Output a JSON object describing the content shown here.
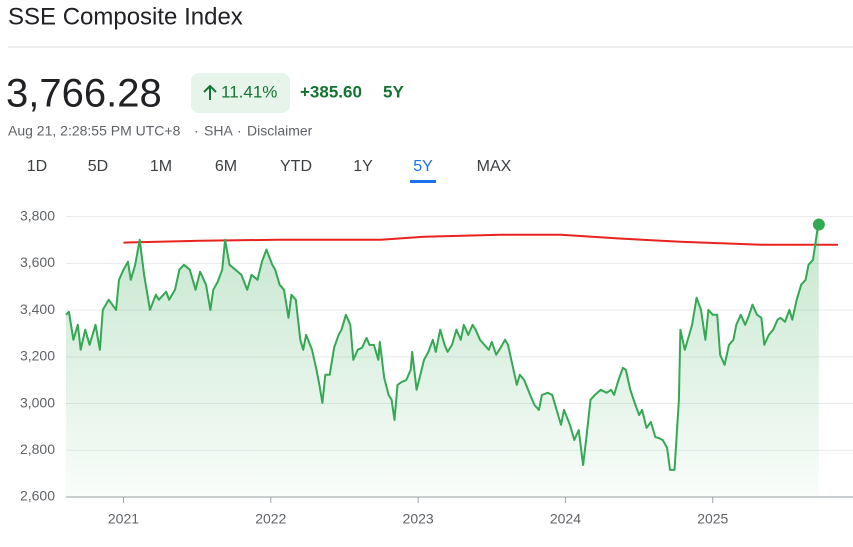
{
  "header": {
    "title": "SSE Composite Index",
    "price": "3,766.28",
    "change_percent": "11.41%",
    "change": "+385.60",
    "change_period": "5Y",
    "timestamp": "Aug 21, 2:28:55 PM UTC+8",
    "exchange": "SHA",
    "disclaimer": "Disclaimer"
  },
  "tabs": {
    "items": [
      "1D",
      "5D",
      "1M",
      "6M",
      "YTD",
      "1Y",
      "5Y",
      "MAX"
    ],
    "selected": 6
  },
  "chart_data": {
    "type": "line",
    "xlim": [
      2020.61,
      2025.85
    ],
    "xticks": [
      2021,
      2022,
      2023,
      2024,
      2025
    ],
    "ylim": [
      2600,
      3850
    ],
    "yticks": [
      {
        "value": 2600,
        "label": "2,600"
      },
      {
        "value": 2800,
        "label": "2,800"
      },
      {
        "value": 3000,
        "label": "3,000"
      },
      {
        "value": 3200,
        "label": "3,200"
      },
      {
        "value": 3400,
        "label": "3,400"
      },
      {
        "value": 3600,
        "label": "3,600"
      },
      {
        "value": 3800,
        "label": "3,800"
      }
    ],
    "grid": true,
    "series": [
      {
        "color": "#34a853",
        "area": true,
        "end_marker": true,
        "x": [
          2020.61,
          2020.63,
          2020.66,
          2020.69,
          2020.71,
          2020.74,
          2020.77,
          2020.81,
          2020.84,
          2020.86,
          2020.9,
          2020.95,
          2020.97,
          2021.0,
          2021.03,
          2021.05,
          2021.08,
          2021.11,
          2021.14,
          2021.18,
          2021.22,
          2021.24,
          2021.29,
          2021.31,
          2021.35,
          2021.38,
          2021.41,
          2021.45,
          2021.49,
          2021.52,
          2021.56,
          2021.59,
          2021.61,
          2021.64,
          2021.67,
          2021.69,
          2021.72,
          2021.76,
          2021.8,
          2021.84,
          2021.87,
          2021.91,
          2021.94,
          2021.97,
          2022.01,
          2022.03,
          2022.06,
          2022.09,
          2022.12,
          2022.14,
          2022.17,
          2022.2,
          2022.22,
          2022.24,
          2022.28,
          2022.31,
          2022.33,
          2022.35,
          2022.37,
          2022.4,
          2022.43,
          2022.46,
          2022.48,
          2022.51,
          2022.54,
          2022.56,
          2022.59,
          2022.62,
          2022.65,
          2022.67,
          2022.7,
          2022.73,
          2022.74,
          2022.77,
          2022.8,
          2022.82,
          2022.84,
          2022.86,
          2022.89,
          2022.92,
          2022.95,
          2022.96,
          2022.99,
          2023.01,
          2023.04,
          2023.07,
          2023.1,
          2023.12,
          2023.15,
          2023.18,
          2023.2,
          2023.23,
          2023.26,
          2023.29,
          2023.31,
          2023.34,
          2023.37,
          2023.39,
          2023.42,
          2023.45,
          2023.48,
          2023.5,
          2023.53,
          2023.56,
          2023.59,
          2023.61,
          2023.64,
          2023.67,
          2023.69,
          2023.72,
          2023.76,
          2023.79,
          2023.82,
          2023.84,
          2023.88,
          2023.91,
          2023.94,
          2023.97,
          2023.99,
          2024.03,
          2024.06,
          2024.09,
          2024.12,
          2024.14,
          2024.17,
          2024.2,
          2024.24,
          2024.28,
          2024.31,
          2024.33,
          2024.36,
          2024.39,
          2024.41,
          2024.44,
          2024.47,
          2024.5,
          2024.52,
          2024.55,
          2024.58,
          2024.61,
          2024.63,
          2024.66,
          2024.69,
          2024.71,
          2024.74,
          2024.77,
          2024.78,
          2024.81,
          2024.84,
          2024.86,
          2024.89,
          2024.92,
          2024.95,
          2024.97,
          2025.0,
          2025.03,
          2025.05,
          2025.08,
          2025.11,
          2025.14,
          2025.16,
          2025.19,
          2025.22,
          2025.24,
          2025.27,
          2025.3,
          2025.33,
          2025.35,
          2025.38,
          2025.41,
          2025.44,
          2025.46,
          2025.49,
          2025.52,
          2025.54,
          2025.57,
          2025.6,
          2025.63,
          2025.65,
          2025.68,
          2025.71,
          2025.72
        ],
        "values": [
          3380,
          3393,
          3273,
          3337,
          3230,
          3316,
          3251,
          3337,
          3230,
          3401,
          3444,
          3401,
          3530,
          3573,
          3607,
          3530,
          3594,
          3701,
          3551,
          3401,
          3466,
          3444,
          3479,
          3444,
          3487,
          3573,
          3594,
          3573,
          3487,
          3564,
          3509,
          3401,
          3487,
          3521,
          3573,
          3701,
          3594,
          3573,
          3551,
          3487,
          3551,
          3530,
          3607,
          3659,
          3594,
          3573,
          3509,
          3487,
          3367,
          3466,
          3444,
          3273,
          3230,
          3294,
          3230,
          3144,
          3080,
          3003,
          3123,
          3123,
          3239,
          3294,
          3316,
          3380,
          3337,
          3187,
          3230,
          3239,
          3281,
          3251,
          3251,
          3187,
          3264,
          3110,
          3037,
          3016,
          2930,
          3080,
          3093,
          3101,
          3144,
          3221,
          3059,
          3110,
          3187,
          3221,
          3273,
          3221,
          3316,
          3251,
          3221,
          3251,
          3316,
          3273,
          3337,
          3294,
          3337,
          3316,
          3273,
          3251,
          3230,
          3264,
          3209,
          3239,
          3273,
          3251,
          3166,
          3080,
          3123,
          3101,
          3037,
          2994,
          2973,
          3037,
          3046,
          3037,
          2973,
          2909,
          2973,
          2909,
          2844,
          2887,
          2737,
          2844,
          3016,
          3037,
          3059,
          3046,
          3059,
          3037,
          3101,
          3153,
          3144,
          3059,
          3003,
          2951,
          2973,
          2896,
          2921,
          2857,
          2853,
          2844,
          2810,
          2716,
          2716,
          3016,
          3316,
          3230,
          3294,
          3337,
          3453,
          3401,
          3273,
          3401,
          3380,
          3380,
          3209,
          3166,
          3251,
          3273,
          3337,
          3380,
          3337,
          3367,
          3423,
          3380,
          3367,
          3251,
          3294,
          3316,
          3359,
          3367,
          3350,
          3401,
          3359,
          3444,
          3509,
          3530,
          3594,
          3616,
          3744,
          3766.28
        ]
      },
      {
        "color": "#e8231f",
        "x": [
          2021.0,
          2021.52,
          2022.04,
          2022.74,
          2023.04,
          2023.56,
          2023.97,
          2024.38,
          2024.78,
          2025.33,
          2025.85
        ],
        "values": [
          3689,
          3697,
          3701,
          3701,
          3714,
          3723,
          3723,
          3706,
          3693,
          3680,
          3680
        ]
      }
    ]
  }
}
